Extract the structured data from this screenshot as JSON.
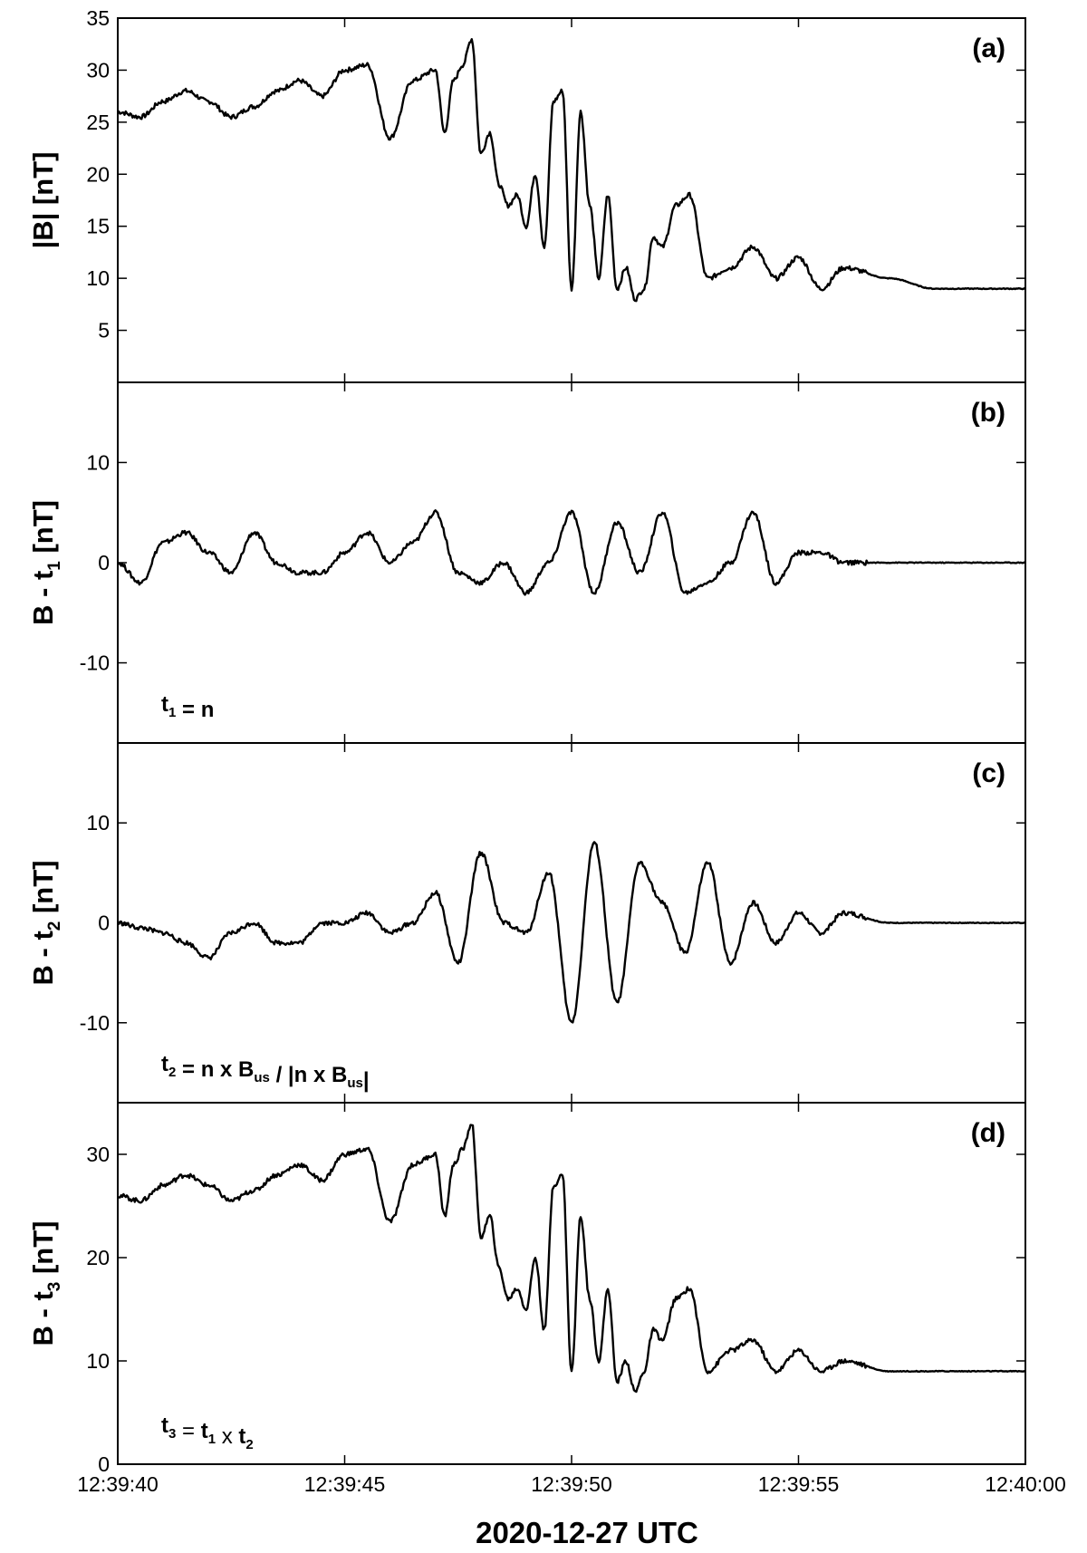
{
  "figure": {
    "xlabel": "2020-12-27 UTC",
    "x_ticks": [
      "12:39:40",
      "12:39:45",
      "12:39:50",
      "12:39:55",
      "12:40:00"
    ]
  },
  "chart_data": [
    {
      "type": "line",
      "panel_label": "(a)",
      "ylabel": "|B| [nT]",
      "ylim": [
        0,
        35
      ],
      "y_ticks": [
        5,
        10,
        15,
        20,
        25,
        30,
        35
      ],
      "annotation": null,
      "series": [
        {
          "x": [
            0,
            0.5,
            1,
            1.5,
            2,
            2.5,
            3,
            3.5,
            4,
            4.5,
            5,
            5.5,
            6,
            6.5,
            7,
            7.2,
            7.4,
            7.6,
            7.8,
            8,
            8.2,
            8.4,
            8.6,
            8.8,
            9,
            9.2,
            9.4,
            9.6,
            9.8,
            10,
            10.2,
            10.4,
            10.6,
            10.8,
            11,
            11.2,
            11.4,
            11.6,
            11.8,
            12,
            12.3,
            12.6,
            13,
            13.5,
            14,
            14.5,
            15,
            15.5,
            16,
            17,
            18,
            19,
            20
          ],
          "y": [
            26,
            25.5,
            27,
            28,
            27,
            25.5,
            26.5,
            28,
            29,
            27.5,
            30,
            30.5,
            23.5,
            29,
            30,
            24,
            29,
            30.5,
            33,
            22,
            24,
            19,
            17,
            18,
            15,
            20,
            13,
            27,
            28,
            9,
            26,
            17,
            10,
            18,
            9,
            11,
            8,
            9,
            14,
            13,
            17,
            18,
            10,
            11,
            13,
            10,
            12,
            9,
            11,
            10,
            9,
            9,
            9
          ]
        }
      ]
    },
    {
      "type": "line",
      "panel_label": "(b)",
      "ylabel": "B - t1 [nT]",
      "ylim": [
        -18,
        18
      ],
      "y_ticks": [
        -10,
        0,
        10
      ],
      "annotation": "t1 = n",
      "series": [
        {
          "x": [
            0,
            0.5,
            1,
            1.5,
            2,
            2.5,
            3,
            3.5,
            4,
            4.5,
            5,
            5.5,
            6,
            6.5,
            7,
            7.5,
            8,
            8.5,
            9,
            9.5,
            10,
            10.5,
            11,
            11.5,
            12,
            12.5,
            13,
            13.5,
            14,
            14.5,
            15,
            15.5,
            16,
            17,
            18,
            19,
            20
          ],
          "y": [
            0,
            -2,
            2,
            3,
            1,
            -1,
            3,
            0,
            -1,
            -1,
            1,
            3,
            0,
            2,
            5,
            -1,
            -2,
            0,
            -3,
            0,
            5,
            -3,
            4,
            -1,
            5,
            -3,
            -2,
            0,
            5,
            -2,
            1,
            1,
            0,
            0,
            0,
            0,
            0
          ]
        }
      ]
    },
    {
      "type": "line",
      "panel_label": "(c)",
      "ylabel": "B - t2 [nT]",
      "ylim": [
        -18,
        18
      ],
      "y_ticks": [
        -10,
        0,
        10
      ],
      "annotation": "t2 = n x Bus / |n x Bus|",
      "series": [
        {
          "x": [
            0,
            0.5,
            1,
            1.5,
            2,
            2.5,
            3,
            3.5,
            4,
            4.5,
            5,
            5.5,
            6,
            6.5,
            7,
            7.5,
            8,
            8.5,
            9,
            9.5,
            10,
            10.5,
            11,
            11.5,
            12,
            12.5,
            13,
            13.5,
            14,
            14.5,
            15,
            15.5,
            16,
            17,
            18,
            19,
            20
          ],
          "y": [
            0,
            -0.5,
            -1,
            -2,
            -3.5,
            -1,
            0,
            -2,
            -2,
            0,
            0,
            1,
            -1,
            0,
            3,
            -4,
            7,
            0,
            -1,
            5,
            -10,
            8,
            -8,
            6,
            2,
            -3,
            6,
            -4,
            2,
            -2,
            1,
            -1,
            1,
            0,
            0,
            0,
            0
          ]
        }
      ]
    },
    {
      "type": "line",
      "panel_label": "(d)",
      "ylabel": "B - t3 [nT]",
      "ylim": [
        0,
        35
      ],
      "y_ticks": [
        0,
        10,
        20,
        30
      ],
      "annotation": "t3 = t1 x t2",
      "series": [
        {
          "x": [
            0,
            0.5,
            1,
            1.5,
            2,
            2.5,
            3,
            3.5,
            4,
            4.5,
            5,
            5.5,
            6,
            6.5,
            7,
            7.2,
            7.4,
            7.6,
            7.8,
            8,
            8.2,
            8.4,
            8.6,
            8.8,
            9,
            9.2,
            9.4,
            9.6,
            9.8,
            10,
            10.2,
            10.4,
            10.6,
            10.8,
            11,
            11.2,
            11.4,
            11.6,
            11.8,
            12,
            12.3,
            12.6,
            13,
            13.5,
            14,
            14.5,
            15,
            15.5,
            16,
            17,
            18,
            19,
            20
          ],
          "y": [
            26,
            25.5,
            27,
            28,
            27,
            25.5,
            26.5,
            28,
            29,
            27.5,
            30,
            30.5,
            23.5,
            29,
            30,
            24,
            29,
            30.5,
            33,
            22,
            24,
            19,
            16,
            17,
            15,
            20,
            13,
            27,
            28,
            9,
            24,
            16,
            10,
            17,
            8,
            10,
            7,
            9,
            13,
            12,
            16,
            17,
            9,
            11,
            12,
            9,
            11,
            9,
            10,
            9,
            9,
            9,
            9
          ]
        }
      ]
    }
  ]
}
